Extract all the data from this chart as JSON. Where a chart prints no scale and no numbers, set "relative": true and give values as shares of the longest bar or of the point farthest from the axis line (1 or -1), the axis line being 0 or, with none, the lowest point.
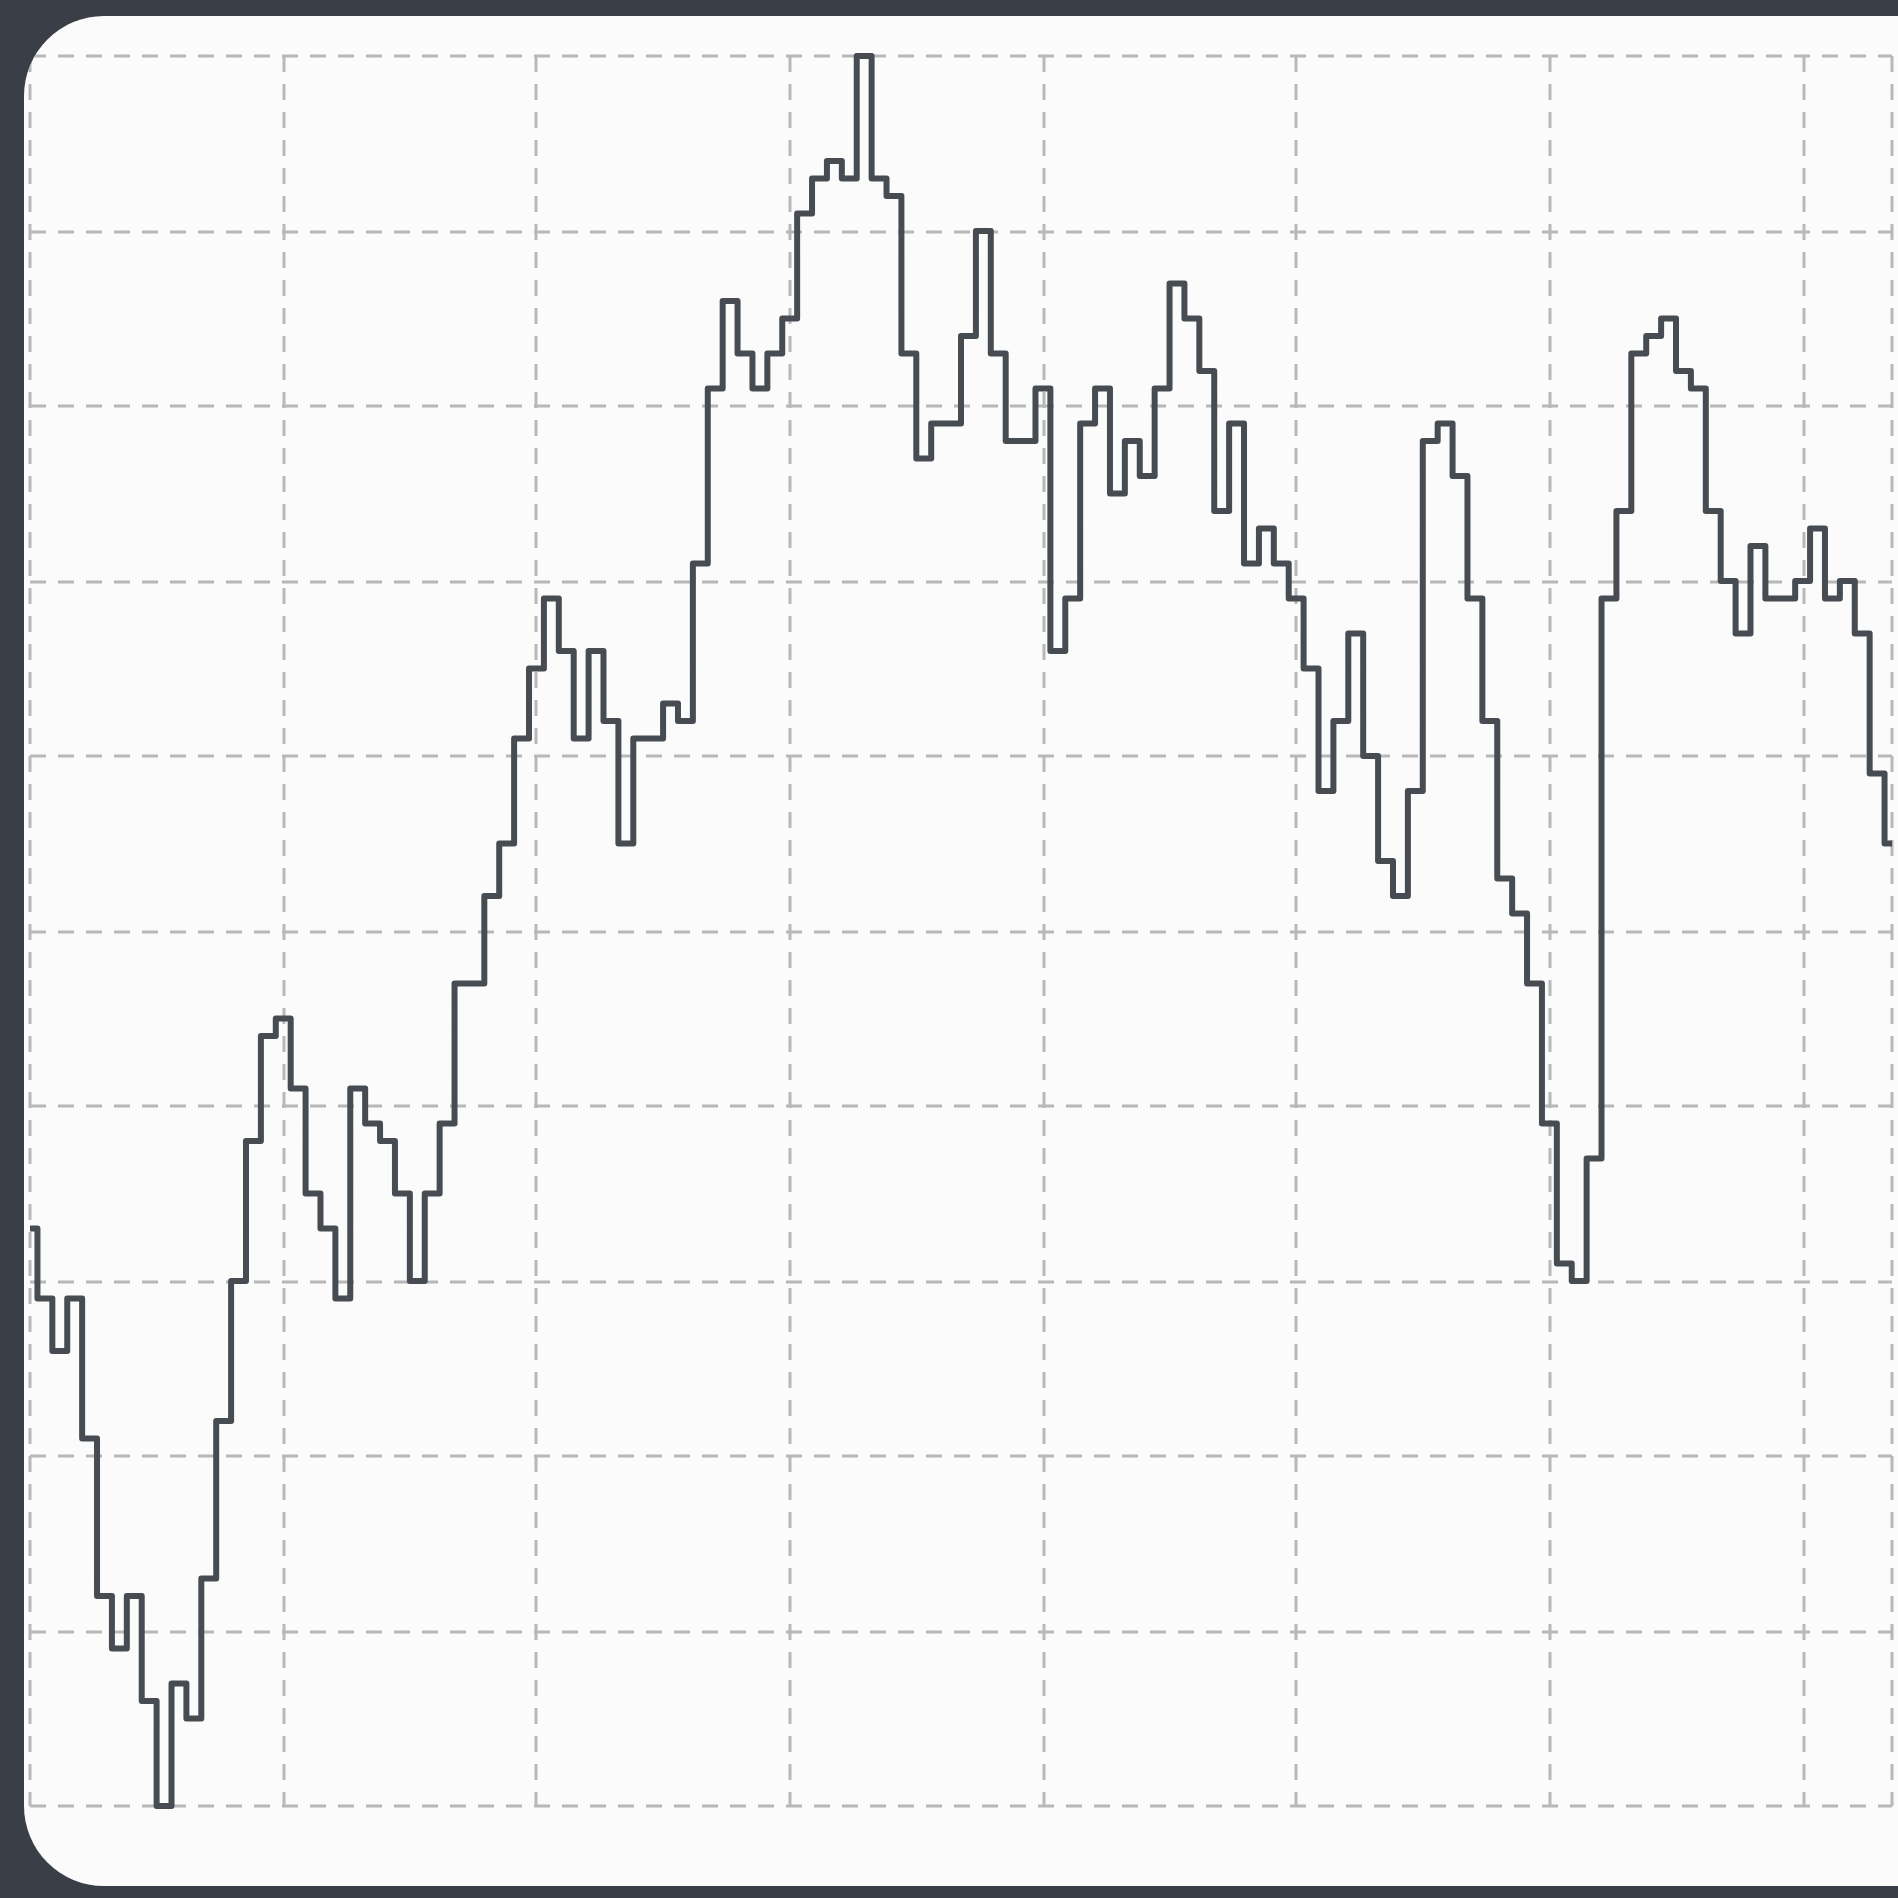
{
  "chart_data": {
    "type": "step",
    "relative": true,
    "grid": true,
    "color": "#474c53",
    "line_style": "solid",
    "marker": "none",
    "categories": [
      null,
      null,
      null,
      null,
      null,
      null,
      null,
      null,
      null,
      null,
      null,
      null,
      null,
      null,
      null,
      null,
      null,
      null,
      null,
      null,
      null,
      null,
      null,
      null,
      null,
      null,
      null,
      null,
      null,
      null,
      null,
      null,
      null,
      null,
      null,
      null,
      null,
      null,
      null,
      null,
      null,
      null,
      null,
      null,
      null,
      null,
      null,
      null,
      null,
      null,
      null,
      null,
      null,
      null,
      null,
      null,
      null,
      null,
      null,
      null,
      null,
      null,
      null,
      null,
      null,
      null,
      null,
      null,
      null,
      null,
      null,
      null,
      null,
      null,
      null,
      null,
      null,
      null,
      null,
      null,
      null,
      null,
      null,
      null,
      null,
      null,
      null,
      null,
      null,
      null,
      null,
      null,
      null,
      null,
      null,
      null,
      null,
      null,
      null,
      null,
      null,
      null,
      null,
      null,
      null,
      null,
      null,
      null,
      null,
      null,
      null,
      null,
      null,
      null,
      null,
      null,
      null,
      null,
      null,
      null,
      null,
      null,
      null,
      null,
      null,
      null
    ],
    "values": [
      0.33,
      0.29,
      0.26,
      0.29,
      0.21,
      0.12,
      0.09,
      0.12,
      0.06,
      0,
      0.07,
      0.05,
      0.13,
      0.22,
      0.3,
      0.38,
      0.44,
      0.45,
      0.41,
      0.35,
      0.33,
      0.29,
      0.41,
      0.39,
      0.38,
      0.35,
      0.3,
      0.35,
      0.39,
      0.47,
      0.47,
      0.52,
      0.55,
      0.61,
      0.65,
      0.69,
      0.66,
      0.61,
      0.66,
      0.62,
      0.55,
      0.61,
      0.61,
      0.63,
      0.62,
      0.71,
      0.81,
      0.86,
      0.83,
      0.81,
      0.83,
      0.85,
      0.91,
      0.93,
      0.94,
      0.93,
      1,
      0.93,
      0.92,
      0.83,
      0.77,
      0.79,
      0.79,
      0.84,
      0.9,
      0.83,
      0.78,
      0.78,
      0.81,
      0.66,
      0.69,
      0.79,
      0.81,
      0.75,
      0.78,
      0.76,
      0.81,
      0.87,
      0.85,
      0.82,
      0.74,
      0.79,
      0.71,
      0.73,
      0.71,
      0.69,
      0.65,
      0.58,
      0.62,
      0.67,
      0.6,
      0.54,
      0.52,
      0.58,
      0.78,
      0.79,
      0.76,
      0.69,
      0.62,
      0.53,
      0.51,
      0.47,
      0.39,
      0.31,
      0.3,
      0.37,
      0.69,
      0.74,
      0.83,
      0.84,
      0.85,
      0.82,
      0.81,
      0.74,
      0.7,
      0.67,
      0.72,
      0.69,
      0.69,
      0.7,
      0.73,
      0.69,
      0.7,
      0.67,
      0.59,
      0.55
    ]
  }
}
